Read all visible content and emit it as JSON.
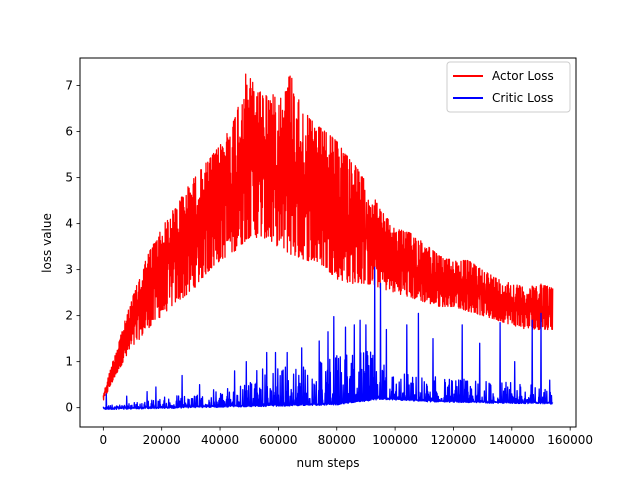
{
  "chart_data": {
    "type": "line",
    "title": "",
    "xlabel": "num steps",
    "ylabel": "loss value",
    "xlim": [
      -8000,
      162000
    ],
    "ylim": [
      -0.42,
      7.6
    ],
    "xticks": [
      0,
      20000,
      40000,
      60000,
      80000,
      100000,
      120000,
      140000,
      160000
    ],
    "xtick_labels": [
      "0",
      "20000",
      "40000",
      "60000",
      "80000",
      "100000",
      "120000",
      "140000",
      "160000"
    ],
    "yticks": [
      0,
      1,
      2,
      3,
      4,
      5,
      6,
      7
    ],
    "ytick_labels": [
      "0",
      "1",
      "2",
      "3",
      "4",
      "5",
      "6",
      "7"
    ],
    "grid": false,
    "legend_position": "top-right",
    "series": [
      {
        "name": "Actor Loss",
        "color": "#ff0000",
        "x_range": [
          0,
          154000
        ],
        "upper_envelope": [
          [
            0,
            0.3
          ],
          [
            5000,
            1.4
          ],
          [
            10000,
            2.4
          ],
          [
            15000,
            3.3
          ],
          [
            20000,
            3.9
          ],
          [
            25000,
            4.4
          ],
          [
            30000,
            4.9
          ],
          [
            35000,
            5.3
          ],
          [
            40000,
            5.7
          ],
          [
            45000,
            6.3
          ],
          [
            49000,
            7.3
          ],
          [
            53000,
            6.9
          ],
          [
            57000,
            6.8
          ],
          [
            62000,
            6.8
          ],
          [
            64000,
            7.3
          ],
          [
            68000,
            6.5
          ],
          [
            72000,
            6.2
          ],
          [
            76000,
            6.0
          ],
          [
            80000,
            5.8
          ],
          [
            85000,
            5.4
          ],
          [
            90000,
            4.9
          ],
          [
            95000,
            4.3
          ],
          [
            100000,
            3.9
          ],
          [
            105000,
            3.8
          ],
          [
            110000,
            3.6
          ],
          [
            115000,
            3.3
          ],
          [
            120000,
            3.2
          ],
          [
            125000,
            3.2
          ],
          [
            130000,
            3.0
          ],
          [
            135000,
            2.8
          ],
          [
            140000,
            2.7
          ],
          [
            145000,
            2.6
          ],
          [
            150000,
            2.7
          ],
          [
            154000,
            2.6
          ]
        ],
        "lower_envelope": [
          [
            0,
            0.15
          ],
          [
            5000,
            0.8
          ],
          [
            10000,
            1.3
          ],
          [
            15000,
            1.7
          ],
          [
            20000,
            2.0
          ],
          [
            25000,
            2.3
          ],
          [
            30000,
            2.5
          ],
          [
            35000,
            2.9
          ],
          [
            40000,
            3.2
          ],
          [
            45000,
            3.4
          ],
          [
            50000,
            3.7
          ],
          [
            55000,
            3.7
          ],
          [
            60000,
            3.5
          ],
          [
            65000,
            3.3
          ],
          [
            70000,
            3.2
          ],
          [
            75000,
            3.1
          ],
          [
            80000,
            2.8
          ],
          [
            85000,
            2.7
          ],
          [
            90000,
            2.7
          ],
          [
            95000,
            2.6
          ],
          [
            100000,
            2.5
          ],
          [
            105000,
            2.4
          ],
          [
            110000,
            2.3
          ],
          [
            115000,
            2.2
          ],
          [
            120000,
            2.2
          ],
          [
            125000,
            2.1
          ],
          [
            130000,
            2.0
          ],
          [
            135000,
            1.9
          ],
          [
            140000,
            1.8
          ],
          [
            145000,
            1.7
          ],
          [
            150000,
            1.7
          ],
          [
            154000,
            1.7
          ]
        ]
      },
      {
        "name": "Critic Loss",
        "color": "#0000ff",
        "x_range": [
          0,
          154000
        ],
        "baseline": [
          [
            0,
            -0.02
          ],
          [
            20000,
            0.0
          ],
          [
            40000,
            0.03
          ],
          [
            60000,
            0.05
          ],
          [
            80000,
            0.08
          ],
          [
            95000,
            0.2
          ],
          [
            110000,
            0.15
          ],
          [
            130000,
            0.12
          ],
          [
            154000,
            0.1
          ]
        ],
        "noise_top": [
          [
            0,
            0.05
          ],
          [
            15000,
            0.15
          ],
          [
            25000,
            0.3
          ],
          [
            35000,
            0.35
          ],
          [
            45000,
            0.5
          ],
          [
            50000,
            0.8
          ],
          [
            60000,
            0.9
          ],
          [
            70000,
            1.0
          ],
          [
            80000,
            1.2
          ],
          [
            90000,
            1.3
          ],
          [
            100000,
            0.8
          ],
          [
            110000,
            0.7
          ],
          [
            120000,
            0.65
          ],
          [
            130000,
            0.6
          ],
          [
            140000,
            0.55
          ],
          [
            150000,
            0.5
          ],
          [
            154000,
            0.35
          ]
        ],
        "spikes": [
          [
            1000,
            0.3
          ],
          [
            8000,
            0.25
          ],
          [
            15000,
            0.35
          ],
          [
            18000,
            0.45
          ],
          [
            27000,
            0.7
          ],
          [
            33000,
            0.5
          ],
          [
            45000,
            0.8
          ],
          [
            49000,
            1.0
          ],
          [
            56000,
            1.2
          ],
          [
            59000,
            1.2
          ],
          [
            63000,
            1.2
          ],
          [
            68000,
            1.3
          ],
          [
            74000,
            1.45
          ],
          [
            77000,
            1.65
          ],
          [
            79000,
            1.98
          ],
          [
            83000,
            1.75
          ],
          [
            86000,
            1.8
          ],
          [
            88000,
            1.9
          ],
          [
            90000,
            1.8
          ],
          [
            93000,
            3.05
          ],
          [
            95000,
            2.7
          ],
          [
            97000,
            1.7
          ],
          [
            104000,
            1.8
          ],
          [
            108000,
            2.05
          ],
          [
            113000,
            1.5
          ],
          [
            123000,
            1.8
          ],
          [
            129000,
            1.4
          ],
          [
            136000,
            1.85
          ],
          [
            141000,
            1.0
          ],
          [
            147000,
            1.9
          ],
          [
            150000,
            2.05
          ],
          [
            153000,
            0.6
          ]
        ]
      }
    ]
  }
}
